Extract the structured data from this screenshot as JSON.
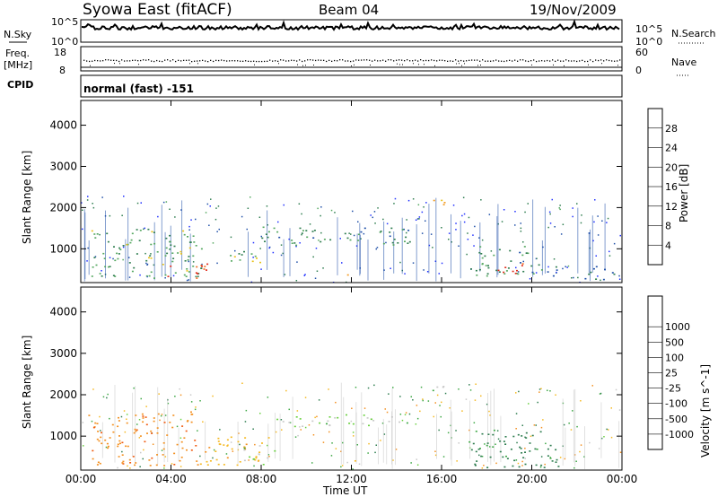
{
  "header": {
    "station": "Syowa East (fitACF)",
    "beam": "Beam 04",
    "date": "19/Nov/2009"
  },
  "nsky_panel": {
    "left_label_top": "N.Sky",
    "right_label": "N.Search",
    "tick_top_left": "10^5",
    "tick_bottom_left": "10^0",
    "tick_top_right": "10^5",
    "tick_bottom_right": "10^0"
  },
  "freq_panel": {
    "label_line1": "Freq.",
    "label_line2": "[MHz]",
    "right_label": "Nave",
    "tick_top_left": "18",
    "tick_bottom_left": "8",
    "tick_top_right": "60",
    "tick_bottom_right": "0"
  },
  "cpid_panel": {
    "label": "CPID",
    "mode": "normal (fast) -151"
  },
  "colors": {
    "power_scale": [
      "#2030ff",
      "#1f4fa8",
      "#2e7d4f",
      "#55a860",
      "#e8c21a",
      "#f39b20",
      "#f06820",
      "#e02a18"
    ],
    "velocity_scale": [
      "#e01010",
      "#f05a10",
      "#f39020",
      "#f5b820",
      "#c8c8c8",
      "#6ad040",
      "#3ea845",
      "#2e7d4f",
      "#1f4fa8",
      "#2030d0"
    ]
  },
  "chart_data": [
    {
      "type": "heatmap",
      "name": "power",
      "xlabel": "",
      "ylabel": "Slant Range [km]",
      "x_ticks": [
        "00:00",
        "04:00",
        "08:00",
        "12:00",
        "16:00",
        "20:00",
        "00:00"
      ],
      "x_range_hours": [
        0,
        24
      ],
      "y_ticks": [
        1000,
        2000,
        3000,
        4000
      ],
      "ylim": [
        180,
        4600
      ],
      "colorbar": {
        "label": "Power [dB]",
        "ticks": [
          "4",
          "8",
          "12",
          "16",
          "20",
          "24",
          "28"
        ],
        "range": [
          0,
          30
        ]
      },
      "regions": [
        {
          "t": [
            0.4,
            5.4
          ],
          "r": [
            300,
            1500
          ],
          "value": 12
        },
        {
          "t": [
            3.8,
            6.0
          ],
          "r": [
            300,
            650
          ],
          "value": 27
        },
        {
          "t": [
            5.8,
            8.0
          ],
          "r": [
            650,
            1000
          ],
          "value": 14
        },
        {
          "t": [
            8.0,
            14.6
          ],
          "r": [
            1100,
            1550
          ],
          "value": 10
        },
        {
          "t": [
            11.7,
            12.2
          ],
          "r": [
            380,
            520
          ],
          "value": 24
        },
        {
          "t": [
            15.2,
            16.3
          ],
          "r": [
            2050,
            2250
          ],
          "value": 22
        },
        {
          "t": [
            17.2,
            20.0
          ],
          "r": [
            350,
            1100
          ],
          "value": 11
        },
        {
          "t": [
            18.0,
            19.6
          ],
          "r": [
            400,
            700
          ],
          "value": 26
        },
        {
          "t": [
            20.0,
            21.3
          ],
          "r": [
            250,
            650
          ],
          "value": 9
        },
        {
          "t": [
            22.2,
            23.8
          ],
          "r": [
            200,
            600
          ],
          "value": 6
        }
      ]
    },
    {
      "type": "heatmap",
      "name": "velocity",
      "xlabel": "Time UT",
      "ylabel": "Slant Range [km]",
      "x_ticks": [
        "00:00",
        "04:00",
        "08:00",
        "12:00",
        "16:00",
        "20:00",
        "00:00"
      ],
      "x_range_hours": [
        0,
        24
      ],
      "y_ticks": [
        1000,
        2000,
        3000,
        4000
      ],
      "ylim": [
        180,
        4600
      ],
      "colorbar": {
        "label": "Velocity [m s^-1]",
        "ticks": [
          "-1000",
          "-500",
          "-100",
          "-25",
          "25",
          "100",
          "500",
          "1000"
        ]
      },
      "regions": [
        {
          "t": [
            0.3,
            5.2
          ],
          "r": [
            300,
            1600
          ],
          "value": -400
        },
        {
          "t": [
            5.2,
            8.4
          ],
          "r": [
            300,
            1000
          ],
          "value": -80
        },
        {
          "t": [
            7.2,
            8.6
          ],
          "r": [
            300,
            800
          ],
          "value": 0
        },
        {
          "t": [
            8.5,
            14.6
          ],
          "r": [
            1250,
            1550
          ],
          "value": 0
        },
        {
          "t": [
            11.7,
            12.2
          ],
          "r": [
            380,
            520
          ],
          "value": -80
        },
        {
          "t": [
            15.2,
            16.3
          ],
          "r": [
            2050,
            2250
          ],
          "value": 0
        },
        {
          "t": [
            17.2,
            21.3
          ],
          "r": [
            250,
            1200
          ],
          "value": 150
        }
      ]
    }
  ]
}
